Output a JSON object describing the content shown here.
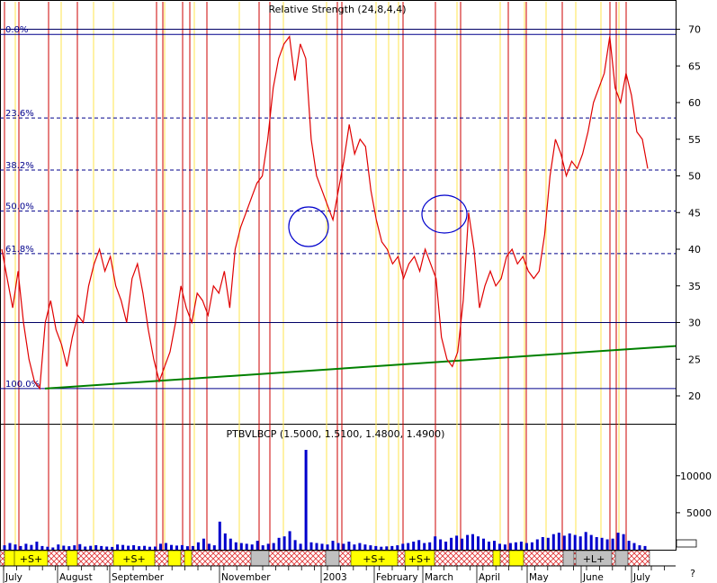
{
  "chart_data": [
    {
      "type": "line",
      "title": "Relative Strength (24,8,4,4)",
      "x_range": [
        "2002-07",
        "2003-07"
      ],
      "ylim": [
        15,
        74
      ],
      "y_ticks": [
        20,
        25,
        30,
        35,
        40,
        45,
        50,
        55,
        60,
        65,
        70
      ],
      "fib_levels": [
        {
          "label": "0.0%",
          "value": 69.3
        },
        {
          "label": "23.6%",
          "value": 57.9
        },
        {
          "label": "38.2%",
          "value": 50.8
        },
        {
          "label": "50.0%",
          "value": 45.2
        },
        {
          "label": "61.8%",
          "value": 39.4
        },
        {
          "label": "100.0%",
          "value": 21.0
        }
      ],
      "horizontal_lines": [
        70,
        30
      ],
      "trendline": {
        "start": 21.0,
        "end": 26.8
      },
      "series": [
        {
          "values": [
            40,
            36,
            32,
            37,
            30,
            25,
            22,
            21,
            30,
            33,
            29,
            27,
            24,
            28,
            31,
            30,
            35,
            38,
            40,
            37,
            39,
            35,
            33,
            30,
            36,
            38,
            34,
            29,
            25,
            22,
            24,
            26,
            30,
            35,
            32,
            30,
            34,
            33,
            31,
            35,
            34,
            37,
            32,
            40,
            43,
            45,
            47,
            49,
            50,
            55,
            62,
            66,
            68,
            69,
            63,
            68,
            66,
            55,
            50,
            48,
            46,
            44,
            48,
            52,
            57,
            53,
            55,
            54,
            48,
            44,
            41,
            40,
            38,
            39,
            36,
            38,
            39,
            37,
            40,
            38,
            36,
            28,
            25,
            24,
            26,
            33,
            45,
            40,
            32,
            35,
            37,
            35,
            36,
            39,
            40,
            38,
            39,
            37,
            36,
            37,
            42,
            50,
            55,
            53,
            50,
            52,
            51,
            53,
            56,
            60,
            62,
            64,
            69,
            62,
            60,
            64,
            61,
            56,
            55,
            51
          ]
        }
      ]
    },
    {
      "type": "bar",
      "title": "PTBVLBCP (1.5000, 1.5100, 1.4800, 1.4900)",
      "ylim": [
        0,
        13500
      ],
      "y_ticks": [
        5000,
        10000
      ],
      "values": [
        600,
        900,
        700,
        500,
        800,
        650,
        1100,
        500,
        400,
        300,
        700,
        550,
        480,
        600,
        750,
        430,
        520,
        610,
        500,
        420,
        380,
        700,
        650,
        540,
        610,
        480,
        520,
        400,
        430,
        800,
        900,
        650,
        560,
        620,
        480,
        500,
        1000,
        1500,
        800,
        600,
        3800,
        2200,
        1500,
        1000,
        900,
        800,
        700,
        1200,
        600,
        800,
        900,
        1600,
        1800,
        2500,
        1300,
        800,
        13500,
        1000,
        900,
        800,
        700,
        1200,
        900,
        800,
        1100,
        700,
        900,
        700,
        600,
        500,
        400,
        450,
        500,
        600,
        800,
        900,
        1100,
        1300,
        900,
        1000,
        1800,
        1400,
        1100,
        1600,
        1900,
        1500,
        2000,
        2100,
        1800,
        1500,
        1100,
        1200,
        800,
        700,
        900,
        1000,
        1100,
        900,
        1000,
        1400,
        1700,
        1600,
        2100,
        2300,
        1900,
        2200,
        2000,
        1800,
        2400,
        2000,
        1700,
        1600,
        1400,
        1500,
        2300,
        2100,
        1200,
        900,
        600,
        500
      ]
    }
  ],
  "months": [
    "July",
    "August",
    "September",
    "November",
    "2003",
    "February",
    "March",
    "April",
    "May",
    "June",
    "July"
  ],
  "signal_band": {
    "labels": [
      "+S+",
      "+S+",
      "+S+",
      "+S+",
      "+L+"
    ]
  },
  "colors": {
    "price": "#e00000",
    "fib": "#00008b",
    "trend": "#008000",
    "volume": "#0000cc",
    "red_marker": "#cc0000",
    "yellow_marker": "#ffe64d",
    "band_yellow": "#ffff00",
    "band_gray": "#c0c0c0",
    "circle": "#0000cc"
  },
  "corner_mark": "?"
}
